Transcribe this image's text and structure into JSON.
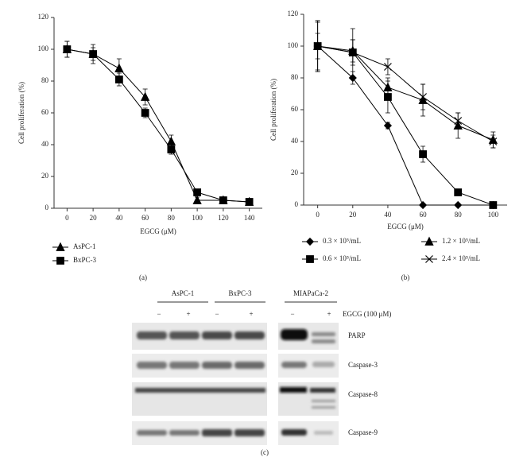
{
  "chart_data": [
    {
      "type": "line",
      "panel_label": "(a)",
      "ylabel": "Cell proliferation (%)",
      "xlabel": "EGCG (μM)",
      "x": [
        0,
        20,
        40,
        60,
        80,
        100,
        120,
        140
      ],
      "xlim": [
        -10,
        150
      ],
      "xticks": [
        0,
        20,
        40,
        60,
        80,
        100,
        120,
        140
      ],
      "ylim": [
        0,
        120
      ],
      "yticks": [
        0,
        20,
        40,
        60,
        80,
        100,
        120
      ],
      "series": [
        {
          "name": "AsPC-1",
          "color": "#000000",
          "marker": "triangle",
          "values": [
            100,
            97,
            88,
            70,
            42,
            5,
            5,
            4
          ],
          "errors": [
            5,
            4,
            6,
            5,
            4,
            2,
            2,
            2
          ]
        },
        {
          "name": "BxPC-3",
          "color": "#000000",
          "marker": "square",
          "values": [
            100,
            97,
            81,
            60,
            37,
            10,
            5,
            4
          ],
          "errors": [
            5,
            6,
            4,
            3,
            3,
            2,
            2,
            2
          ]
        }
      ]
    },
    {
      "type": "line",
      "panel_label": "(b)",
      "ylabel": "Cell proliferation (%)",
      "xlabel": "EGCG (μM)",
      "x": [
        0,
        20,
        40,
        60,
        80,
        100
      ],
      "xlim": [
        -8,
        108
      ],
      "xticks": [
        0,
        20,
        40,
        60,
        80,
        100
      ],
      "ylim": [
        0,
        120
      ],
      "yticks": [
        0,
        20,
        40,
        60,
        80,
        100,
        120
      ],
      "series": [
        {
          "name": "0.3 × 10⁵/mL",
          "color": "#000000",
          "marker": "diamond",
          "values": [
            100,
            80,
            50,
            0,
            0,
            0
          ],
          "errors": [
            15,
            4,
            2,
            0,
            0,
            0
          ]
        },
        {
          "name": "0.6 × 10⁵/mL",
          "color": "#000000",
          "marker": "square",
          "values": [
            100,
            96,
            68,
            32,
            8,
            0
          ],
          "errors": [
            16,
            8,
            10,
            5,
            1,
            0
          ]
        },
        {
          "name": "1.2 × 10⁵/mL",
          "color": "#000000",
          "marker": "triangle",
          "values": [
            100,
            97,
            74,
            66,
            50,
            41
          ],
          "errors": [
            8,
            7,
            6,
            10,
            8,
            5
          ]
        },
        {
          "name": "2.4 × 10⁵/mL",
          "color": "#000000",
          "marker": "cross",
          "values": [
            100,
            96,
            87,
            68,
            53,
            40
          ],
          "errors": [
            16,
            15,
            5,
            8,
            5,
            4
          ]
        }
      ]
    }
  ],
  "blot": {
    "panel_label": "(c)",
    "cell_lines": [
      "AsPC-1",
      "BxPC-3",
      "MIAPaCa-2"
    ],
    "treatment_signs": [
      "−",
      "+",
      "−",
      "+",
      "−",
      "+"
    ],
    "treatment_label": "EGCG (100 μM)",
    "proteins": [
      "PARP",
      "Caspase-3",
      "Caspase-8",
      "Caspase-9"
    ]
  }
}
